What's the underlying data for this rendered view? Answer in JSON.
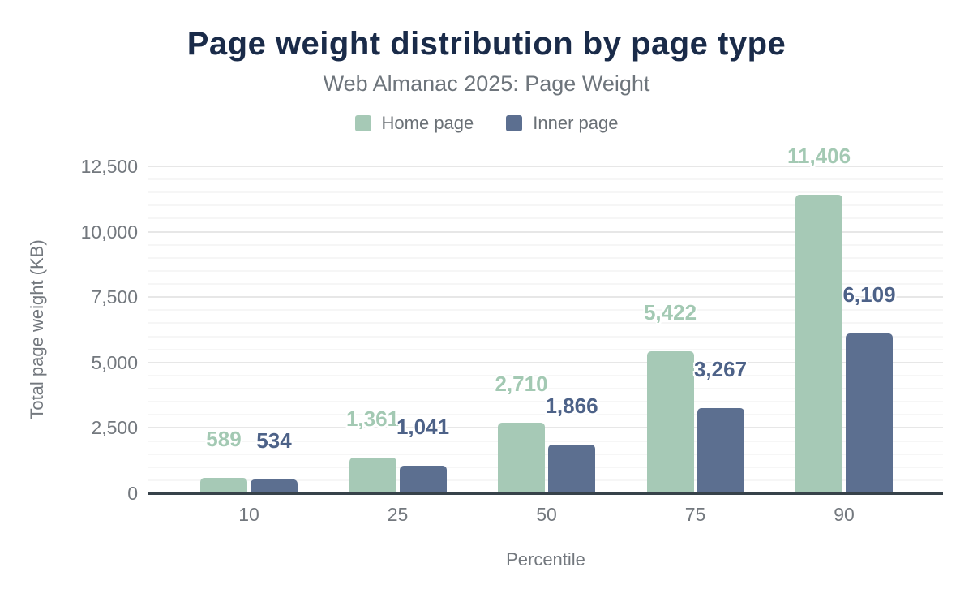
{
  "chart_data": {
    "type": "bar",
    "title": "Page weight distribution by page type",
    "subtitle": "Web Almanac 2025: Page Weight",
    "xlabel": "Percentile",
    "ylabel": "Total page weight (KB)",
    "categories": [
      "10",
      "25",
      "50",
      "75",
      "90"
    ],
    "series": [
      {
        "name": "Home page",
        "color": "#a6c9b6",
        "label_color": "#a3c9b3",
        "values": [
          589,
          1361,
          2710,
          5422,
          11406
        ]
      },
      {
        "name": "Inner page",
        "color": "#5c6f90",
        "label_color": "#4d6288",
        "values": [
          534,
          1041,
          1866,
          3267,
          6109
        ]
      }
    ],
    "ylim": [
      0,
      12500
    ],
    "ytick_step": 2500,
    "minor_tick_step": 500,
    "ytick_labels": [
      "0",
      "2,500",
      "5,000",
      "7,500",
      "10,000",
      "12,500"
    ],
    "grid": true,
    "legend_position": "top",
    "colors": {
      "title": "#1a2b49",
      "subtitle": "#6e757c",
      "axis_text": "#73787e",
      "axis_line": "#37424a",
      "grid_major": "#e7e7e7",
      "grid_minor": "#f6f6f6"
    }
  }
}
